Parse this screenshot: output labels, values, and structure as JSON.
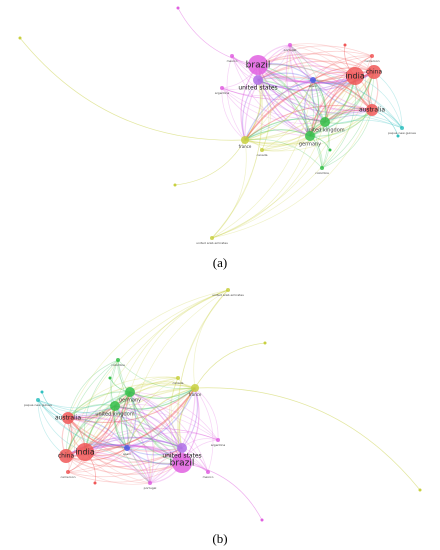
{
  "panels": [
    {
      "label": "(a)",
      "nodes": [
        "brazil",
        "united states",
        "india",
        "china",
        "australia",
        "united kingdom",
        "germany",
        "france",
        "portugal",
        "spain",
        "argentina",
        "canada",
        "cameroon",
        "mexico",
        "colombia",
        "united arab emirates",
        "papua new guinea"
      ]
    },
    {
      "label": "(b)",
      "nodes": [
        "brazil",
        "united states",
        "india",
        "china",
        "australia",
        "united kingdom",
        "germany",
        "france",
        "portugal",
        "spain",
        "argentina",
        "canada",
        "cameroon",
        "mexico",
        "colombia",
        "united arab emirates",
        "papua new guinea"
      ]
    }
  ]
}
